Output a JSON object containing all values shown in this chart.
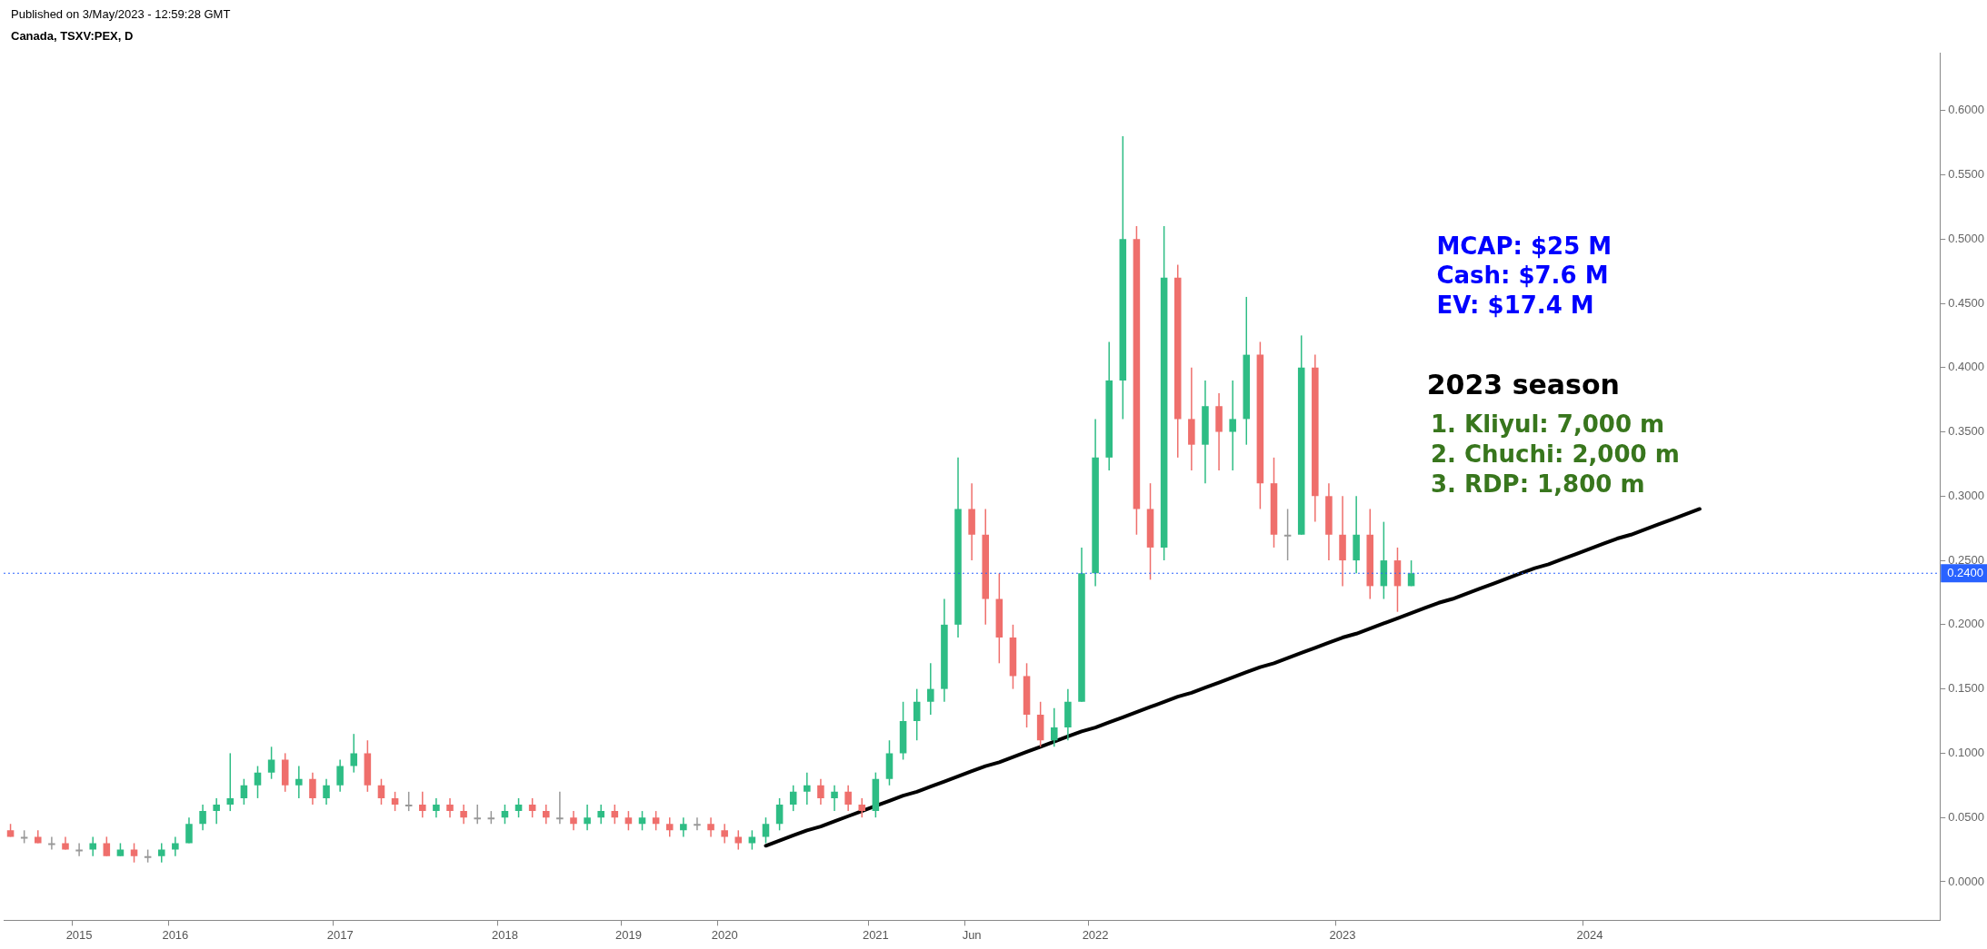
{
  "chart_data": {
    "type": "candlestick",
    "title": "Canada, TSXV:PEX, D",
    "subtitle": "Published on 3/May/2023 - 12:59:28 GMT",
    "categories": [
      null,
      null,
      null,
      null,
      null,
      "2015",
      null,
      null,
      null,
      null,
      null,
      null,
      "2016",
      null,
      null,
      null,
      null,
      null,
      null,
      null,
      null,
      null,
      null,
      null,
      "2017",
      null,
      null,
      null,
      null,
      null,
      null,
      null,
      null,
      null,
      null,
      null,
      "2018",
      null,
      null,
      null,
      null,
      null,
      null,
      null,
      null,
      "2019",
      null,
      null,
      null,
      null,
      null,
      null,
      "2020",
      null,
      null,
      null,
      null,
      null,
      null,
      null,
      null,
      null,
      null,
      "2021",
      null,
      null,
      null,
      null,
      null,
      null,
      "Jun",
      null,
      null,
      null,
      null,
      null,
      null,
      null,
      null,
      "2022",
      null,
      null,
      null,
      null,
      null,
      null,
      null,
      null,
      null,
      null,
      null,
      null,
      null,
      null,
      null,
      null,
      null,
      "2023",
      null,
      null,
      null,
      null,
      null,
      null,
      null,
      null,
      null,
      null,
      null,
      null,
      null,
      null,
      null,
      null,
      null,
      "2024",
      null,
      null,
      null,
      null,
      null,
      null,
      null,
      null,
      null,
      null,
      null,
      null,
      null,
      null,
      null,
      null,
      null,
      null,
      null,
      null,
      null,
      null,
      null,
      null,
      null
    ],
    "ohlc": [
      [
        0.04,
        0.045,
        0.035,
        0.035
      ],
      [
        0.035,
        0.04,
        0.03,
        0.035
      ],
      [
        0.035,
        0.04,
        0.03,
        0.03
      ],
      [
        0.03,
        0.035,
        0.025,
        0.03
      ],
      [
        0.03,
        0.035,
        0.025,
        0.025
      ],
      [
        0.025,
        0.03,
        0.02,
        0.025
      ],
      [
        0.025,
        0.035,
        0.02,
        0.03
      ],
      [
        0.03,
        0.035,
        0.02,
        0.02
      ],
      [
        0.02,
        0.03,
        0.02,
        0.025
      ],
      [
        0.025,
        0.03,
        0.015,
        0.02
      ],
      [
        0.02,
        0.025,
        0.015,
        0.02
      ],
      [
        0.02,
        0.03,
        0.015,
        0.025
      ],
      [
        0.025,
        0.035,
        0.02,
        0.03
      ],
      [
        0.03,
        0.05,
        0.03,
        0.045
      ],
      [
        0.045,
        0.06,
        0.04,
        0.055
      ],
      [
        0.055,
        0.065,
        0.045,
        0.06
      ],
      [
        0.06,
        0.1,
        0.055,
        0.065
      ],
      [
        0.065,
        0.08,
        0.06,
        0.075
      ],
      [
        0.075,
        0.09,
        0.065,
        0.085
      ],
      [
        0.085,
        0.105,
        0.08,
        0.095
      ],
      [
        0.095,
        0.1,
        0.07,
        0.075
      ],
      [
        0.075,
        0.09,
        0.065,
        0.08
      ],
      [
        0.08,
        0.085,
        0.06,
        0.065
      ],
      [
        0.065,
        0.08,
        0.06,
        0.075
      ],
      [
        0.075,
        0.095,
        0.07,
        0.09
      ],
      [
        0.09,
        0.115,
        0.085,
        0.1
      ],
      [
        0.1,
        0.11,
        0.07,
        0.075
      ],
      [
        0.075,
        0.08,
        0.06,
        0.065
      ],
      [
        0.065,
        0.07,
        0.055,
        0.06
      ],
      [
        0.06,
        0.07,
        0.055,
        0.06
      ],
      [
        0.06,
        0.07,
        0.05,
        0.055
      ],
      [
        0.055,
        0.065,
        0.05,
        0.06
      ],
      [
        0.06,
        0.065,
        0.05,
        0.055
      ],
      [
        0.055,
        0.06,
        0.045,
        0.05
      ],
      [
        0.05,
        0.06,
        0.045,
        0.05
      ],
      [
        0.05,
        0.055,
        0.045,
        0.05
      ],
      [
        0.05,
        0.06,
        0.045,
        0.055
      ],
      [
        0.055,
        0.065,
        0.05,
        0.06
      ],
      [
        0.06,
        0.065,
        0.05,
        0.055
      ],
      [
        0.055,
        0.06,
        0.045,
        0.05
      ],
      [
        0.05,
        0.07,
        0.045,
        0.05
      ],
      [
        0.05,
        0.055,
        0.04,
        0.045
      ],
      [
        0.045,
        0.06,
        0.04,
        0.05
      ],
      [
        0.05,
        0.06,
        0.045,
        0.055
      ],
      [
        0.055,
        0.06,
        0.045,
        0.05
      ],
      [
        0.05,
        0.055,
        0.04,
        0.045
      ],
      [
        0.045,
        0.055,
        0.04,
        0.05
      ],
      [
        0.05,
        0.055,
        0.04,
        0.045
      ],
      [
        0.045,
        0.05,
        0.035,
        0.04
      ],
      [
        0.04,
        0.05,
        0.035,
        0.045
      ],
      [
        0.045,
        0.05,
        0.04,
        0.045
      ],
      [
        0.045,
        0.05,
        0.035,
        0.04
      ],
      [
        0.04,
        0.045,
        0.03,
        0.035
      ],
      [
        0.035,
        0.04,
        0.025,
        0.03
      ],
      [
        0.03,
        0.04,
        0.025,
        0.035
      ],
      [
        0.035,
        0.05,
        0.03,
        0.045
      ],
      [
        0.045,
        0.065,
        0.04,
        0.06
      ],
      [
        0.06,
        0.075,
        0.055,
        0.07
      ],
      [
        0.07,
        0.085,
        0.06,
        0.075
      ],
      [
        0.075,
        0.08,
        0.06,
        0.065
      ],
      [
        0.065,
        0.075,
        0.055,
        0.07
      ],
      [
        0.07,
        0.075,
        0.055,
        0.06
      ],
      [
        0.06,
        0.065,
        0.05,
        0.055
      ],
      [
        0.055,
        0.085,
        0.05,
        0.08
      ],
      [
        0.08,
        0.11,
        0.075,
        0.1
      ],
      [
        0.1,
        0.14,
        0.095,
        0.125
      ],
      [
        0.125,
        0.15,
        0.11,
        0.14
      ],
      [
        0.14,
        0.17,
        0.13,
        0.15
      ],
      [
        0.15,
        0.22,
        0.14,
        0.2
      ],
      [
        0.2,
        0.33,
        0.19,
        0.29
      ],
      [
        0.29,
        0.31,
        0.25,
        0.27
      ],
      [
        0.27,
        0.29,
        0.2,
        0.22
      ],
      [
        0.22,
        0.24,
        0.17,
        0.19
      ],
      [
        0.19,
        0.2,
        0.15,
        0.16
      ],
      [
        0.16,
        0.17,
        0.12,
        0.13
      ],
      [
        0.13,
        0.14,
        0.105,
        0.11
      ],
      [
        0.11,
        0.135,
        0.105,
        0.12
      ],
      [
        0.12,
        0.15,
        0.11,
        0.14
      ],
      [
        0.14,
        0.26,
        0.14,
        0.24
      ],
      [
        0.24,
        0.36,
        0.23,
        0.33
      ],
      [
        0.33,
        0.42,
        0.32,
        0.39
      ],
      [
        0.39,
        0.58,
        0.36,
        0.5
      ],
      [
        0.5,
        0.51,
        0.27,
        0.29
      ],
      [
        0.29,
        0.31,
        0.235,
        0.26
      ],
      [
        0.26,
        0.51,
        0.25,
        0.47
      ],
      [
        0.47,
        0.48,
        0.33,
        0.36
      ],
      [
        0.36,
        0.4,
        0.32,
        0.34
      ],
      [
        0.34,
        0.39,
        0.31,
        0.37
      ],
      [
        0.37,
        0.38,
        0.32,
        0.35
      ],
      [
        0.35,
        0.39,
        0.32,
        0.36
      ],
      [
        0.36,
        0.455,
        0.34,
        0.41
      ],
      [
        0.41,
        0.42,
        0.29,
        0.31
      ],
      [
        0.31,
        0.33,
        0.26,
        0.27
      ],
      [
        0.27,
        0.29,
        0.25,
        0.27
      ],
      [
        0.27,
        0.425,
        0.27,
        0.4
      ],
      [
        0.4,
        0.41,
        0.28,
        0.3
      ],
      [
        0.3,
        0.31,
        0.25,
        0.27
      ],
      [
        0.27,
        0.3,
        0.23,
        0.25
      ],
      [
        0.25,
        0.3,
        0.24,
        0.27
      ],
      [
        0.27,
        0.29,
        0.22,
        0.23
      ],
      [
        0.23,
        0.28,
        0.22,
        0.25
      ],
      [
        0.25,
        0.26,
        0.21,
        0.23
      ],
      [
        0.23,
        0.25,
        0.23,
        0.24
      ],
      null,
      null,
      null,
      null,
      null,
      null,
      null,
      null,
      null,
      null,
      null,
      null,
      null,
      null,
      null,
      null,
      null,
      null,
      null,
      null,
      null,
      null,
      null,
      null,
      null,
      null,
      null,
      null,
      null,
      null,
      null,
      null,
      null,
      null,
      null,
      null,
      null,
      null
    ],
    "colors": [
      "#ef6f6c",
      "#999999",
      "#ef6f6c",
      "#999999",
      "#ef6f6c",
      "#999999",
      "#2ebd85",
      "#ef6f6c",
      "#2ebd85",
      "#ef6f6c",
      "#999999",
      "#2ebd85",
      "#2ebd85",
      "#2ebd85",
      "#2ebd85",
      "#2ebd85",
      "#2ebd85",
      "#2ebd85",
      "#2ebd85",
      "#2ebd85",
      "#ef6f6c",
      "#2ebd85",
      "#ef6f6c",
      "#2ebd85",
      "#2ebd85",
      "#2ebd85",
      "#ef6f6c",
      "#ef6f6c",
      "#ef6f6c",
      "#999999",
      "#ef6f6c",
      "#2ebd85",
      "#ef6f6c",
      "#ef6f6c",
      "#999999",
      "#999999",
      "#2ebd85",
      "#2ebd85",
      "#ef6f6c",
      "#ef6f6c",
      "#999999",
      "#ef6f6c",
      "#2ebd85",
      "#2ebd85",
      "#ef6f6c",
      "#ef6f6c",
      "#2ebd85",
      "#ef6f6c",
      "#ef6f6c",
      "#2ebd85",
      "#999999",
      "#ef6f6c",
      "#ef6f6c",
      "#ef6f6c",
      "#2ebd85",
      "#2ebd85",
      "#2ebd85",
      "#2ebd85",
      "#2ebd85",
      "#ef6f6c",
      "#2ebd85",
      "#ef6f6c",
      "#ef6f6c",
      "#2ebd85",
      "#2ebd85",
      "#2ebd85",
      "#2ebd85",
      "#2ebd85",
      "#2ebd85",
      "#2ebd85",
      "#ef6f6c",
      "#ef6f6c",
      "#ef6f6c",
      "#ef6f6c",
      "#ef6f6c",
      "#ef6f6c",
      "#2ebd85",
      "#2ebd85",
      "#2ebd85",
      "#2ebd85",
      "#2ebd85",
      "#2ebd85",
      "#ef6f6c",
      "#ef6f6c",
      "#2ebd85",
      "#ef6f6c",
      "#ef6f6c",
      "#2ebd85",
      "#ef6f6c",
      "#2ebd85",
      "#2ebd85",
      "#ef6f6c",
      "#ef6f6c",
      "#999999",
      "#2ebd85",
      "#ef6f6c",
      "#ef6f6c",
      "#ef6f6c",
      "#2ebd85",
      "#ef6f6c",
      "#2ebd85",
      "#ef6f6c",
      "#2ebd85",
      null,
      null,
      null,
      null,
      null,
      null,
      null,
      null,
      null,
      null,
      null,
      null,
      null,
      null,
      null,
      null,
      null,
      null,
      null,
      null,
      null,
      null,
      null,
      null,
      null,
      null,
      null,
      null,
      null,
      null,
      null,
      null,
      null,
      null,
      null,
      null,
      null,
      null
    ],
    "series": [
      {
        "type": "line",
        "color": "#000000",
        "values": [
          null,
          null,
          null,
          null,
          null,
          null,
          null,
          null,
          null,
          null,
          null,
          null,
          null,
          null,
          null,
          null,
          null,
          null,
          null,
          null,
          null,
          null,
          null,
          null,
          null,
          null,
          null,
          null,
          null,
          null,
          null,
          null,
          null,
          null,
          null,
          null,
          null,
          null,
          null,
          null,
          null,
          null,
          null,
          null,
          null,
          null,
          null,
          null,
          null,
          null,
          null,
          null,
          null,
          null,
          null,
          0.028,
          0.032,
          0.036,
          0.04,
          0.043,
          0.047,
          0.051,
          0.055,
          0.059,
          0.063,
          0.067,
          0.07,
          0.074,
          0.078,
          0.082,
          0.086,
          0.09,
          0.093,
          0.097,
          0.101,
          0.105,
          0.109,
          0.113,
          0.117,
          0.12,
          0.124,
          0.128,
          0.132,
          0.136,
          0.14,
          0.144,
          0.147,
          0.151,
          0.155,
          0.159,
          0.163,
          0.167,
          0.17,
          0.174,
          0.178,
          0.182,
          0.186,
          0.19,
          0.193,
          0.197,
          0.201,
          0.205,
          0.209,
          0.213,
          0.217,
          0.22,
          0.224,
          0.228,
          0.232,
          0.236,
          0.24,
          0.244,
          0.247,
          0.251,
          0.255,
          0.259,
          0.263,
          0.267,
          0.27,
          0.274,
          0.278,
          0.282,
          0.286,
          0.29,
          null,
          null,
          null,
          null,
          null,
          null,
          null,
          null,
          null,
          null,
          null,
          null,
          null,
          null,
          null,
          null,
          null
        ]
      }
    ],
    "ylim": [
      -0.03,
      0.645
    ],
    "yticks": [
      {
        "value": 0,
        "label": "0.0000"
      },
      {
        "value": 0.05,
        "label": "0.0500"
      },
      {
        "value": 0.1,
        "label": "0.1000"
      },
      {
        "value": 0.15,
        "label": "0.1500"
      },
      {
        "value": 0.2,
        "label": "0.2000"
      },
      {
        "value": 0.25,
        "label": "0.2500"
      },
      {
        "value": 0.3,
        "label": "0.3000"
      },
      {
        "value": 0.35,
        "label": "0.3500"
      },
      {
        "value": 0.4,
        "label": "0.4000"
      },
      {
        "value": 0.45,
        "label": "0.4500"
      },
      {
        "value": 0.5,
        "label": "0.5000"
      },
      {
        "value": 0.55,
        "label": "0.5500"
      },
      {
        "value": 0.6,
        "label": "0.6000"
      }
    ],
    "ref_lines": [
      {
        "axis": "y",
        "value": 0.24,
        "label": "0.2400",
        "color": "#2962ff",
        "line_style": "dotted"
      }
    ],
    "annotations": [
      "MCAP: $25 M",
      "Cash: $7.6 M",
      "EV: $17.4 M",
      "2023 season",
      "1. Kliyul: 7,000 m",
      "2. Chuchi: 2,000 m",
      "3. RDP: 1,800 m"
    ]
  }
}
